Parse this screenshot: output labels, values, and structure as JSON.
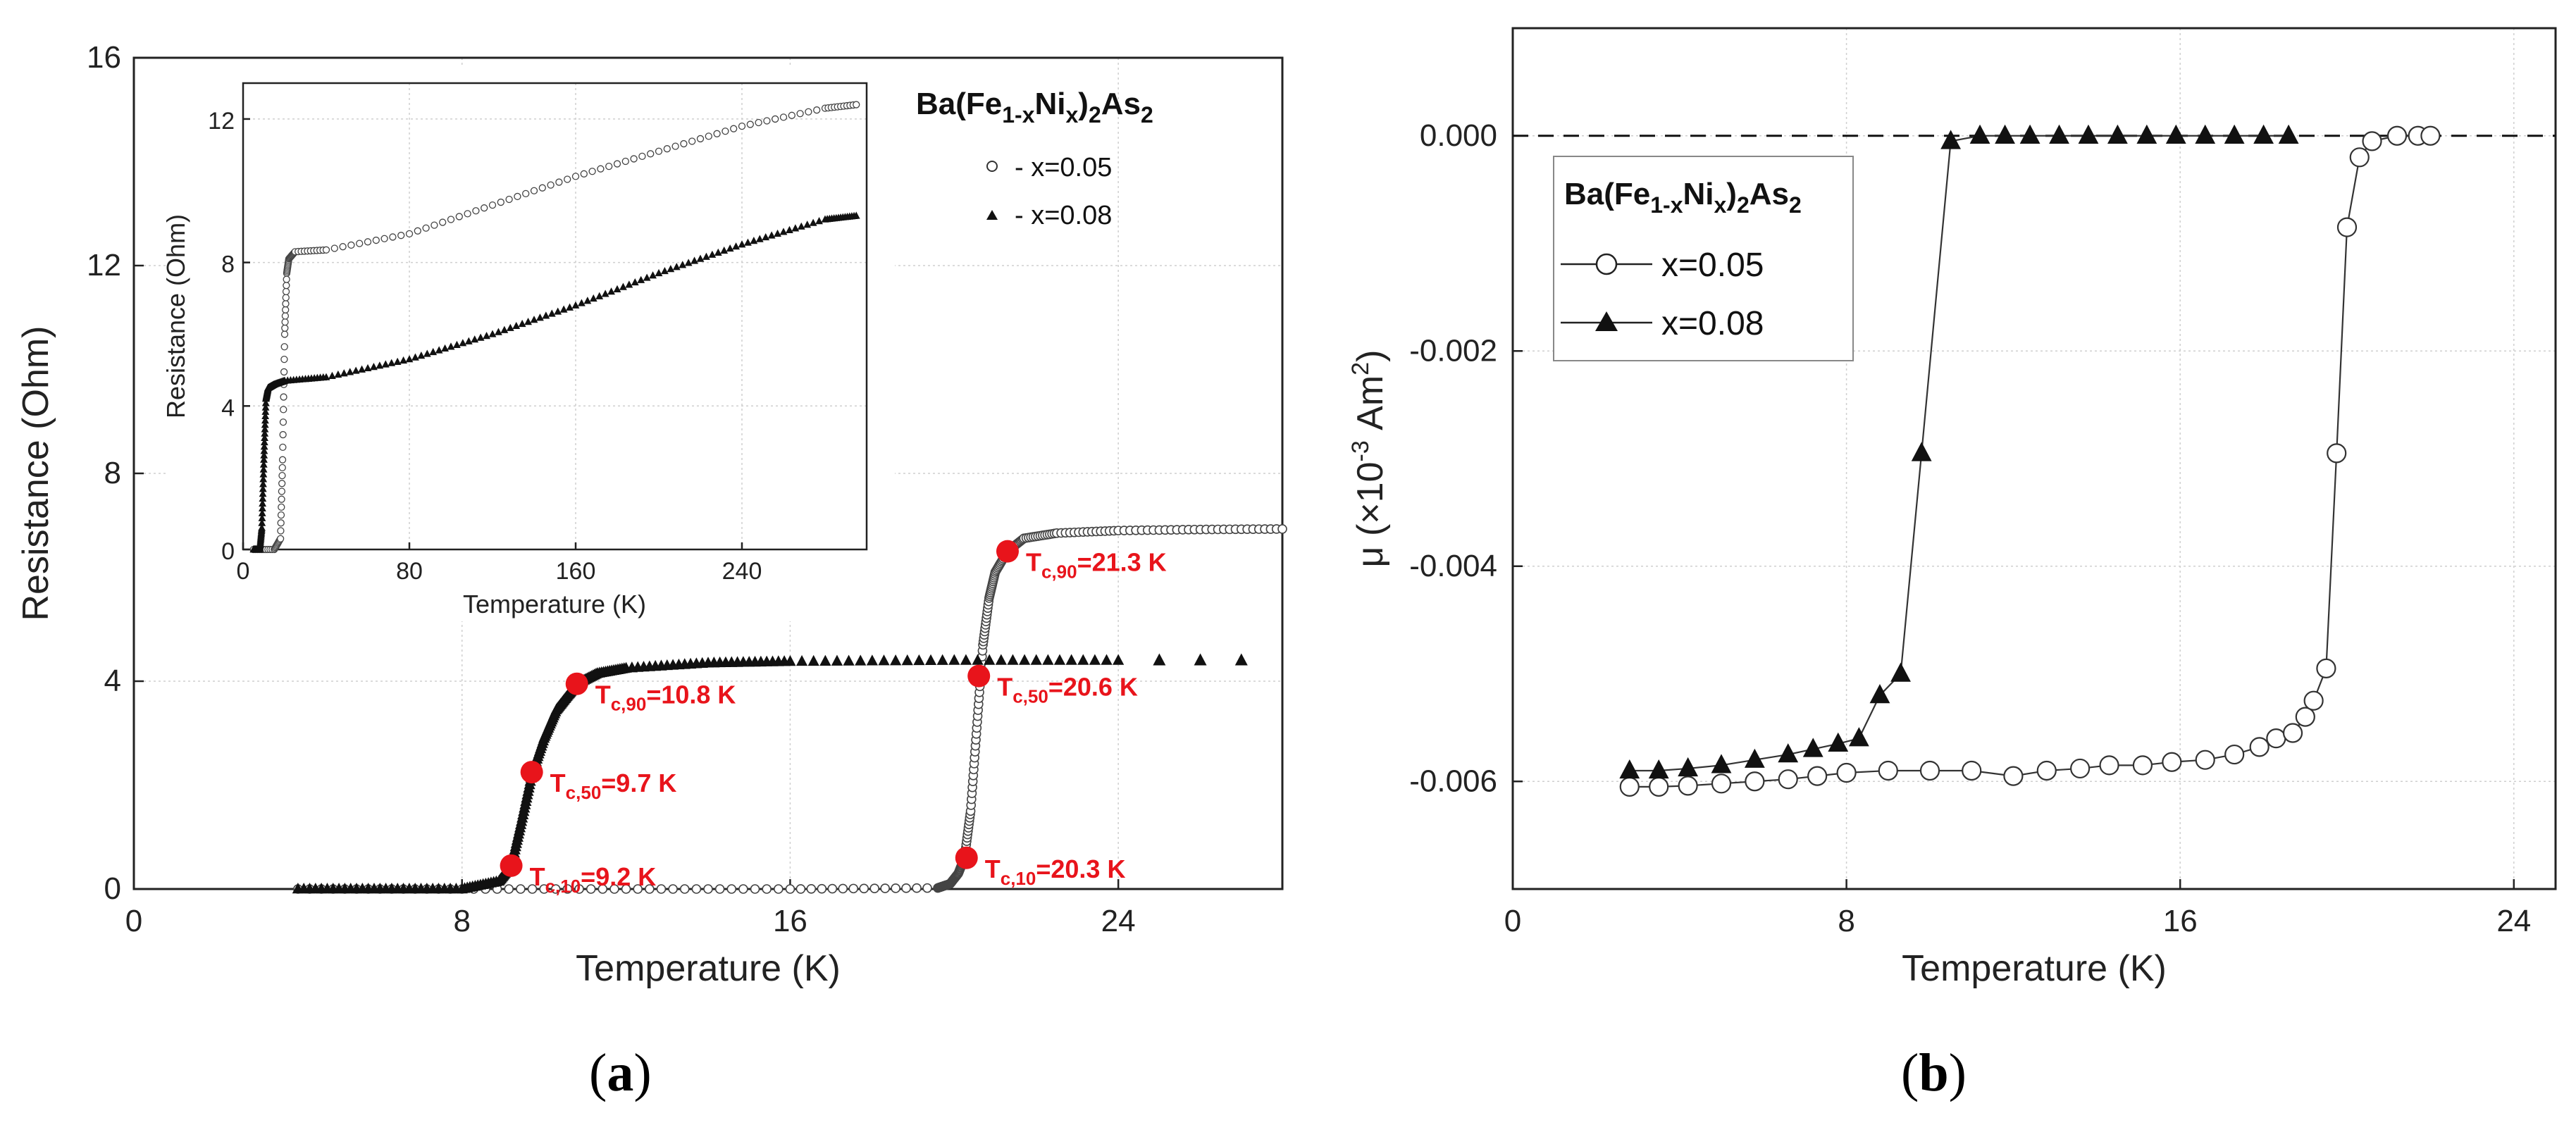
{
  "chart_data": [
    {
      "type": "scatter",
      "panel": "a",
      "title": "",
      "xlabel": "Temperature (K)",
      "ylabel": "Resistance (Ohm)",
      "xlim": [
        0,
        28
      ],
      "ylim": [
        0,
        16
      ],
      "xticks": [
        "0",
        "8",
        "16",
        "24"
      ],
      "yticks": [
        "0",
        "4",
        "8",
        "12",
        "16"
      ],
      "legend": {
        "title_main": "Ba(Fe",
        "title_sub1": "1-x",
        "title_mid": "Ni",
        "title_sub2": "x",
        "title_end": ")",
        "title_sub3": "2",
        "title_end2": "As",
        "title_sub4": "2",
        "items": [
          "- x=0.05",
          "- x=0.08"
        ]
      },
      "series": [
        {
          "name": "x=0.05",
          "marker": "open-circle",
          "x": [
            4,
            8,
            12,
            16,
            19.6,
            19.9,
            20.1,
            20.25,
            20.4,
            20.55,
            20.7,
            20.85,
            21.0,
            21.3,
            21.7,
            22.5,
            24,
            26,
            28
          ],
          "y": [
            0,
            0,
            0,
            0,
            0.02,
            0.1,
            0.3,
            0.6,
            1.5,
            3.1,
            4.7,
            5.6,
            6.1,
            6.5,
            6.75,
            6.85,
            6.9,
            6.92,
            6.93
          ]
        },
        {
          "name": "x=0.08",
          "marker": "filled-triangle",
          "x": [
            4,
            6,
            8,
            8.9,
            9.2,
            9.45,
            9.7,
            10.0,
            10.3,
            10.6,
            10.8,
            11.3,
            12,
            14,
            16,
            20,
            24,
            25,
            26,
            27
          ],
          "y": [
            0,
            0,
            0,
            0.15,
            0.45,
            1.3,
            2.2,
            2.9,
            3.45,
            3.75,
            3.95,
            4.15,
            4.25,
            4.35,
            4.38,
            4.4,
            4.4,
            4.4,
            4.4,
            4.4
          ]
        }
      ],
      "annotations": [
        {
          "base": "T",
          "sub": "c,90",
          "text": "=21.3 K",
          "x": 21.3,
          "y": 6.5
        },
        {
          "base": "T",
          "sub": "c,50",
          "text": "=20.6 K",
          "x": 20.6,
          "y": 4.1
        },
        {
          "base": "T",
          "sub": "c,10",
          "text": "=20.3 K",
          "x": 20.3,
          "y": 0.6
        },
        {
          "base": "T",
          "sub": "c,90",
          "text": "=10.8 K",
          "x": 10.8,
          "y": 3.95
        },
        {
          "base": "T",
          "sub": "c,50",
          "text": "=9.7 K",
          "x": 9.7,
          "y": 2.25
        },
        {
          "base": "T",
          "sub": "c,10",
          "text": "=9.2 K",
          "x": 9.2,
          "y": 0.45
        }
      ],
      "inset": {
        "type": "scatter",
        "xlabel": "Temperature (K)",
        "ylabel": "Resistance (Ohm)",
        "xlim": [
          0,
          300
        ],
        "ylim": [
          0,
          13
        ],
        "xticks": [
          "0",
          "80",
          "160",
          "240"
        ],
        "yticks": [
          "0",
          "4",
          "8",
          "12"
        ],
        "series": [
          {
            "name": "x=0.05",
            "x": [
              5,
              15,
              18,
              19,
              20,
              21,
              22,
              25,
              40,
              80,
              120,
              160,
              200,
              240,
              280,
              295
            ],
            "y": [
              0,
              0,
              0.3,
              2.5,
              6.0,
              7.7,
              8.1,
              8.3,
              8.35,
              8.8,
              9.6,
              10.4,
              11.1,
              11.8,
              12.3,
              12.4
            ]
          },
          {
            "name": "x=0.08",
            "x": [
              5,
              8,
              9,
              10,
              11,
              12,
              15,
              20,
              40,
              80,
              120,
              160,
              200,
              240,
              280,
              295
            ],
            "y": [
              0,
              0,
              0.6,
              2.5,
              4.2,
              4.5,
              4.6,
              4.7,
              4.8,
              5.3,
              6.0,
              6.8,
              7.7,
              8.5,
              9.2,
              9.3
            ]
          }
        ]
      }
    },
    {
      "type": "line",
      "panel": "b",
      "title": "",
      "xlabel": "Temperature (K)",
      "ylabel_main": "μ (×10",
      "ylabel_exp": "-3",
      "ylabel_unit": " Am",
      "ylabel_unit_exp": "2",
      "ylabel_end": ")",
      "xlim": [
        0,
        25
      ],
      "ylim": [
        -0.007,
        0.001
      ],
      "xticks": [
        "0",
        "8",
        "16",
        "24"
      ],
      "yticks": [
        "0.000",
        "-0.002",
        "-0.004",
        "-0.006"
      ],
      "reference_line": 0.0,
      "legend": {
        "title_main": "Ba(Fe",
        "title_sub1": "1-x",
        "title_mid": "Ni",
        "title_sub2": "x",
        "title_end": ")",
        "title_sub3": "2",
        "title_end2": "As",
        "title_sub4": "2",
        "items": [
          "x=0.05",
          "x=0.08"
        ]
      },
      "series": [
        {
          "name": "x=0.05",
          "marker": "open-circle",
          "x": [
            2.8,
            3.5,
            4.2,
            5,
            5.8,
            6.6,
            7.3,
            8,
            9,
            10,
            11,
            12,
            12.8,
            13.6,
            14.3,
            15.1,
            15.8,
            16.6,
            17.3,
            17.9,
            18.3,
            18.7,
            19,
            19.2,
            19.5,
            19.75,
            20,
            20.3,
            20.6,
            21.2,
            21.7,
            22
          ],
          "y": [
            -0.00605,
            -0.00605,
            -0.00604,
            -0.00602,
            -0.006,
            -0.00598,
            -0.00595,
            -0.00592,
            -0.0059,
            -0.0059,
            -0.0059,
            -0.00595,
            -0.0059,
            -0.00588,
            -0.00585,
            -0.00585,
            -0.00582,
            -0.0058,
            -0.00575,
            -0.00568,
            -0.0056,
            -0.00555,
            -0.0054,
            -0.00525,
            -0.00495,
            -0.00295,
            -0.00085,
            -0.0002,
            -5e-05,
            0.0,
            0.0,
            0.0
          ]
        },
        {
          "name": "x=0.08",
          "marker": "filled-triangle",
          "x": [
            2.8,
            3.5,
            4.2,
            5,
            5.8,
            6.6,
            7.2,
            7.8,
            8.3,
            8.8,
            9.3,
            9.8,
            10.5,
            11.2,
            11.8,
            12.4,
            13.1,
            13.8,
            14.5,
            15.2,
            15.9,
            16.6,
            17.3,
            18.0,
            18.6
          ],
          "y": [
            -0.0059,
            -0.0059,
            -0.00588,
            -0.00585,
            -0.0058,
            -0.00575,
            -0.0057,
            -0.00565,
            -0.0056,
            -0.0052,
            -0.005,
            -0.00295,
            -5e-05,
            0.0,
            0.0,
            0.0,
            0.0,
            0.0,
            0.0,
            0.0,
            0.0,
            0.0,
            0.0,
            0.0,
            0.0
          ]
        }
      ]
    }
  ],
  "panel_labels": {
    "a_open": "(",
    "a_letter": "a",
    "a_close": ")",
    "b_open": "(",
    "b_letter": "b",
    "b_close": ")"
  }
}
